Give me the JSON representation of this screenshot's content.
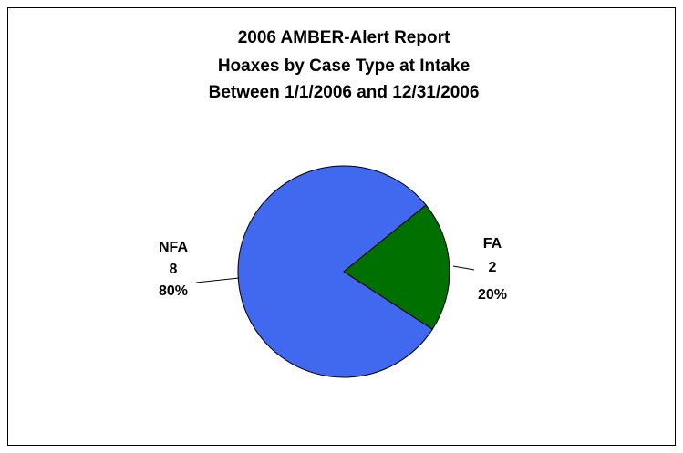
{
  "chart_data": {
    "type": "pie",
    "title": [
      "2006 AMBER-Alert Report",
      "Hoaxes by Case Type at Intake",
      "Between 1/1/2006 and 12/31/2006"
    ],
    "categories": [
      "NFA",
      "FA"
    ],
    "values": [
      8,
      2
    ],
    "percentages": [
      80,
      20
    ],
    "percentage_labels": [
      "80%",
      "20%"
    ],
    "colors": [
      "#4169f0",
      "#007000"
    ]
  }
}
